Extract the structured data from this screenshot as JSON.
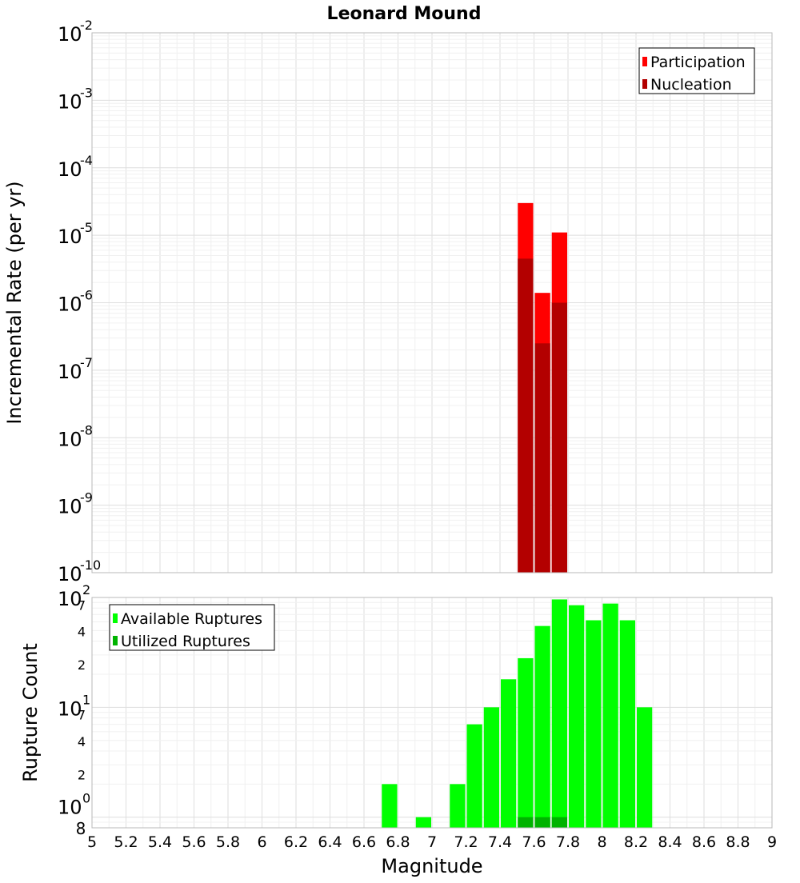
{
  "chart_data": [
    {
      "type": "bar",
      "title": "Leonard Mound",
      "xlabel": "",
      "ylabel": "Incremental Rate (per yr)",
      "yscale": "log",
      "xlim": [
        5,
        9
      ],
      "ylim": [
        1e-10,
        0.01
      ],
      "grid": true,
      "legend_position": "top-right",
      "y_ticks": [
        {
          "base": "10",
          "exp": "-10",
          "value": 1e-10
        },
        {
          "base": "10",
          "exp": "-9",
          "value": 1e-09
        },
        {
          "base": "10",
          "exp": "-8",
          "value": 1e-08
        },
        {
          "base": "10",
          "exp": "-7",
          "value": 1e-07
        },
        {
          "base": "10",
          "exp": "-6",
          "value": 1e-06
        },
        {
          "base": "10",
          "exp": "-5",
          "value": 1e-05
        },
        {
          "base": "10",
          "exp": "-4",
          "value": 0.0001
        },
        {
          "base": "10",
          "exp": "-3",
          "value": 0.001
        },
        {
          "base": "10",
          "exp": "-2",
          "value": 0.01
        }
      ],
      "series": [
        {
          "name": "Participation",
          "color": "#ff0000",
          "x": [
            7.55,
            7.65,
            7.75
          ],
          "values": [
            3e-05,
            1.4e-06,
            1.1e-05
          ]
        },
        {
          "name": "Nucleation",
          "color": "#b30000",
          "x": [
            7.55,
            7.65,
            7.75
          ],
          "values": [
            4.5e-06,
            2.5e-07,
            1e-06
          ]
        }
      ]
    },
    {
      "type": "bar",
      "title": "",
      "xlabel": "Magnitude",
      "ylabel": "Rupture Count",
      "yscale": "log",
      "xlim": [
        5,
        9
      ],
      "ylim": [
        0.8,
        100
      ],
      "grid": true,
      "legend_position": "top-left",
      "x_ticks": [
        "5",
        "5.2",
        "5.4",
        "5.6",
        "5.8",
        "6",
        "6.2",
        "6.4",
        "6.6",
        "6.8",
        "7",
        "7.2",
        "7.4",
        "7.6",
        "7.8",
        "8",
        "8.2",
        "8.4",
        "8.6",
        "8.8",
        "9"
      ],
      "y_major_ticks": [
        {
          "base": "10",
          "exp": "0",
          "value": 1
        },
        {
          "base": "10",
          "exp": "1",
          "value": 10
        },
        {
          "base": "10",
          "exp": "2",
          "value": 100
        }
      ],
      "y_minor_ticks": [
        {
          "label": "8",
          "value": 0.8
        },
        {
          "label": "2",
          "value": 2
        },
        {
          "label": "4",
          "value": 4
        },
        {
          "label": "7",
          "value": 7
        },
        {
          "label": "2",
          "value": 20
        },
        {
          "label": "4",
          "value": 40
        },
        {
          "label": "7",
          "value": 70
        }
      ],
      "series": [
        {
          "name": "Available Ruptures",
          "color": "#00ff00",
          "x": [
            6.75,
            6.95,
            7.15,
            7.25,
            7.35,
            7.45,
            7.55,
            7.65,
            7.75,
            7.85,
            7.95,
            8.05,
            8.15,
            8.25
          ],
          "values": [
            2,
            1,
            2,
            7,
            10,
            18,
            28,
            55,
            96,
            85,
            62,
            88,
            62,
            10
          ]
        },
        {
          "name": "Utilized Ruptures",
          "color": "#00b300",
          "x": [
            7.55,
            7.65,
            7.75
          ],
          "values": [
            1,
            1,
            1
          ]
        }
      ]
    }
  ]
}
